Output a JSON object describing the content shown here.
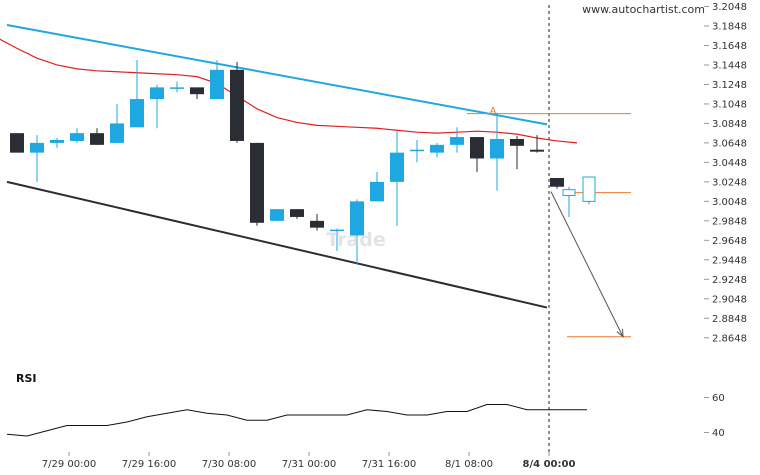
{
  "watermark": "www.autochartist.com",
  "background_mark": "Trade",
  "pattern_point_label": "A",
  "colors": {
    "bull": "#1ea7e1",
    "bear": "#2a2d34",
    "upper_trend": "#1ea7e1",
    "lower_trend": "#2a2d34",
    "ma": "#e02020",
    "level": "#f07a30",
    "projection": "#555555",
    "rsi": "#111111"
  },
  "chart_data": {
    "type": "candlestick",
    "y_ticks": [
      "3.2048",
      "3.1848",
      "3.1648",
      "3.1448",
      "3.1248",
      "3.1048",
      "3.0848",
      "3.0648",
      "3.0448",
      "3.0248",
      "3.0048",
      "2.9848",
      "2.9648",
      "2.9448",
      "2.9248",
      "2.9048",
      "2.8848",
      "2.8648"
    ],
    "ylim": [
      2.8548,
      3.2048
    ],
    "x_ticks": [
      {
        "label": "7/29 00:00",
        "i": 2.6
      },
      {
        "label": "7/29 16:00",
        "i": 6.6
      },
      {
        "label": "7/30 08:00",
        "i": 10.6
      },
      {
        "label": "7/31 00:00",
        "i": 14.6
      },
      {
        "label": "7/31 16:00",
        "i": 18.6
      },
      {
        "label": "8/1 08:00",
        "i": 22.6
      },
      {
        "label": "8/4 00:00",
        "i": 26.6,
        "bold": true
      }
    ],
    "candles": [
      {
        "o": 3.0748,
        "h": 3.0748,
        "l": 3.0548,
        "c": 3.0548
      },
      {
        "o": 3.0548,
        "h": 3.0728,
        "l": 3.0248,
        "c": 3.0648
      },
      {
        "o": 3.0648,
        "h": 3.0698,
        "l": 3.0598,
        "c": 3.0678
      },
      {
        "o": 3.0668,
        "h": 3.0798,
        "l": 3.0648,
        "c": 3.0748
      },
      {
        "o": 3.0748,
        "h": 3.0798,
        "l": 3.0628,
        "c": 3.0628
      },
      {
        "o": 3.0648,
        "h": 3.1048,
        "l": 3.0648,
        "c": 3.0848
      },
      {
        "o": 3.0808,
        "h": 3.1498,
        "l": 3.0808,
        "c": 3.1098
      },
      {
        "o": 3.1098,
        "h": 3.1248,
        "l": 3.0798,
        "c": 3.1218
      },
      {
        "o": 3.1218,
        "h": 3.1278,
        "l": 3.1168,
        "c": 3.1218
      },
      {
        "o": 3.1218,
        "h": 3.1218,
        "l": 3.1098,
        "c": 3.1148
      },
      {
        "o": 3.1098,
        "h": 3.1498,
        "l": 3.1098,
        "c": 3.1398
      },
      {
        "o": 3.1398,
        "h": 3.1478,
        "l": 3.0648,
        "c": 3.0668
      },
      {
        "o": 3.0648,
        "h": 3.0648,
        "l": 2.9798,
        "c": 2.9828
      },
      {
        "o": 2.9848,
        "h": 2.9968,
        "l": 2.9848,
        "c": 2.9968
      },
      {
        "o": 2.9968,
        "h": 2.9968,
        "l": 2.9868,
        "c": 2.9888
      },
      {
        "o": 2.9848,
        "h": 2.9918,
        "l": 2.9748,
        "c": 2.9778
      },
      {
        "o": 2.9748,
        "h": 2.9768,
        "l": 2.9538,
        "c": 2.9758
      },
      {
        "o": 2.9698,
        "h": 3.0068,
        "l": 2.9398,
        "c": 3.0048
      },
      {
        "o": 3.0048,
        "h": 3.0348,
        "l": 3.0048,
        "c": 3.0248
      },
      {
        "o": 3.0248,
        "h": 3.0768,
        "l": 2.9798,
        "c": 3.0548
      },
      {
        "o": 3.0578,
        "h": 3.0678,
        "l": 3.0448,
        "c": 3.0578
      },
      {
        "o": 3.0548,
        "h": 3.0648,
        "l": 3.0498,
        "c": 3.0628
      },
      {
        "o": 3.0628,
        "h": 3.0808,
        "l": 3.0548,
        "c": 3.0708
      },
      {
        "o": 3.0708,
        "h": 3.0708,
        "l": 3.0348,
        "c": 3.0488
      },
      {
        "o": 3.0488,
        "h": 3.0958,
        "l": 3.0158,
        "c": 3.0688
      },
      {
        "o": 3.0688,
        "h": 3.0718,
        "l": 3.0378,
        "c": 3.0618
      },
      {
        "o": 3.0578,
        "h": 3.0728,
        "l": 3.0548,
        "c": 3.0558
      },
      {
        "o": 3.0288,
        "h": 3.0288,
        "l": 3.0178,
        "c": 3.0198
      }
    ],
    "projected_candles": [
      {
        "o": 3.0108,
        "h": 3.0198,
        "l": 2.9888,
        "c": 3.0168
      },
      {
        "o": 3.0048,
        "h": 3.0298,
        "l": 3.0018,
        "c": 3.0298
      }
    ],
    "moving_average": [
      3.1728,
      3.1618,
      3.1518,
      3.1448,
      3.1408,
      3.1388,
      3.1378,
      3.1368,
      3.1358,
      3.1348,
      3.1328,
      3.1258,
      3.1128,
      3.0998,
      3.0908,
      3.0858,
      3.0828,
      3.0818,
      3.0808,
      3.0798,
      3.0778,
      3.0758,
      3.0748,
      3.0758,
      3.0768,
      3.0758,
      3.0738,
      3.0698,
      3.0668,
      3.0648
    ],
    "upper_trendline": [
      {
        "i": -0.5,
        "y": 3.1858
      },
      {
        "i": 26.5,
        "y": 3.0838
      }
    ],
    "lower_trendline": [
      {
        "i": -0.5,
        "y": 3.0248
      },
      {
        "i": 26.5,
        "y": 2.8958
      }
    ],
    "levels": [
      {
        "y": 3.0948,
        "from_i": 22.5,
        "to_i": 30.7
      },
      {
        "y": 3.0138,
        "from_i": 27.6,
        "to_i": 30.7
      },
      {
        "y": 2.8658,
        "from_i": 27.5,
        "to_i": 30.7
      }
    ],
    "projection_arrow": {
      "from": {
        "i": 26.7,
        "y": 3.0148
      },
      "to": {
        "i": 30.3,
        "y": 2.8658
      }
    },
    "pattern_point": {
      "i": 23.8,
      "y": 3.0988
    },
    "rsi": {
      "label": "RSI",
      "y_ticks": [
        60,
        40
      ],
      "ylim": [
        30,
        70
      ],
      "values": [
        39,
        38,
        41,
        44,
        44,
        44,
        46,
        49,
        51,
        53,
        51,
        50,
        47,
        47,
        50,
        50,
        50,
        50,
        53,
        52,
        50,
        50,
        52,
        52,
        56,
        56,
        53,
        53,
        53,
        53
      ]
    }
  }
}
